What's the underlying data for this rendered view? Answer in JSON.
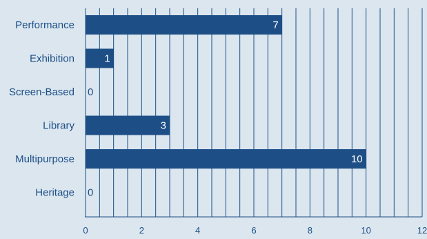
{
  "chart_data": {
    "type": "bar",
    "orientation": "horizontal",
    "categories": [
      "Performance",
      "Exhibition",
      "Screen-Based",
      "Library",
      "Multipurpose",
      "Heritage"
    ],
    "values": [
      7,
      1,
      0,
      3,
      10,
      0
    ],
    "data_labels": [
      "7",
      "1",
      "0",
      "3",
      "10",
      "0"
    ],
    "xlim": [
      0,
      12
    ],
    "x_ticks": [
      0,
      2,
      4,
      6,
      8,
      10,
      12
    ],
    "x_tick_labels": [
      "0",
      "2",
      "4",
      "6",
      "8",
      "10",
      "12"
    ],
    "minor_grid_step": 0.5,
    "grid": true,
    "legend": false,
    "title": "",
    "xlabel": "",
    "ylabel": "",
    "colors": {
      "background": "#dbe6ef",
      "bar": "#1d4f86",
      "grid": "#1d4f86",
      "text": "#1d4f86",
      "label_inside": "#ffffff"
    }
  }
}
